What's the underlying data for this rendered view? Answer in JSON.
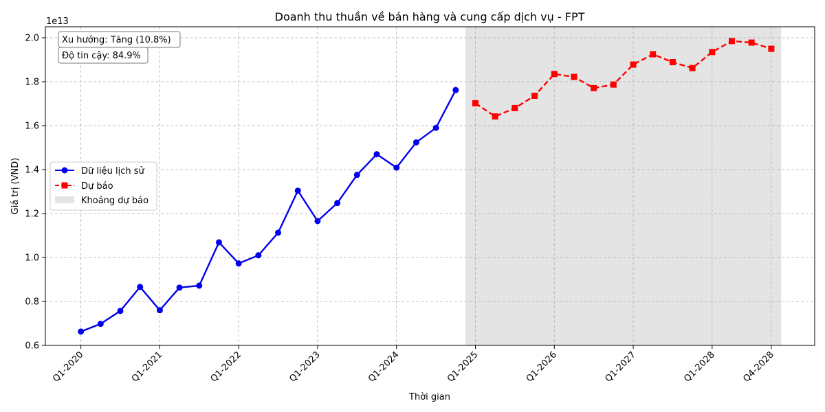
{
  "chart_data": {
    "type": "line",
    "title": "Doanh thu thuần về bán hàng và cung cấp dịch vụ - FPT",
    "xlabel": "Thời gian",
    "ylabel": "Giá trị (VND)",
    "y_scale_label": "1e13",
    "ylim": [
      0.6,
      2.05
    ],
    "y_ticks": [
      0.6,
      0.8,
      1.0,
      1.2,
      1.4,
      1.6,
      1.8,
      2.0
    ],
    "y_tick_labels": [
      "0.6",
      "0.8",
      "1.0",
      "1.2",
      "1.4",
      "1.6",
      "1.8",
      "2.0"
    ],
    "x_ticks": [
      {
        "label": "Q1-2020",
        "q": 0
      },
      {
        "label": "Q1-2021",
        "q": 4
      },
      {
        "label": "Q1-2022",
        "q": 8
      },
      {
        "label": "Q1-2023",
        "q": 12
      },
      {
        "label": "Q1-2024",
        "q": 16
      },
      {
        "label": "Q1-2025",
        "q": 20
      },
      {
        "label": "Q1-2026",
        "q": 24
      },
      {
        "label": "Q1-2027",
        "q": 28
      },
      {
        "label": "Q1-2028",
        "q": 32
      },
      {
        "label": "Q4-2028",
        "q": 35
      }
    ],
    "grid": true,
    "legend_placement": "center-left",
    "series": [
      {
        "name": "Dữ liệu lịch sử",
        "color": "#0000ee",
        "style": "solid",
        "marker": "circle",
        "x": [
          0,
          1,
          2,
          3,
          4,
          5,
          6,
          7,
          8,
          9,
          10,
          11,
          12,
          13,
          14,
          15,
          16,
          17,
          18,
          19
        ],
        "values": [
          0.663,
          0.698,
          0.757,
          0.866,
          0.76,
          0.863,
          0.872,
          1.069,
          0.973,
          1.01,
          1.113,
          1.304,
          1.166,
          1.248,
          1.376,
          1.47,
          1.409,
          1.524,
          1.59,
          1.762
        ]
      },
      {
        "name": "Dự báo",
        "color": "#ff0000",
        "style": "dashed",
        "marker": "square",
        "x": [
          20,
          21,
          22,
          23,
          24,
          25,
          26,
          27,
          28,
          29,
          30,
          31,
          32,
          33,
          34,
          35
        ],
        "values": [
          1.702,
          1.642,
          1.68,
          1.736,
          1.835,
          1.822,
          1.771,
          1.787,
          1.878,
          1.925,
          1.889,
          1.862,
          1.935,
          1.985,
          1.978,
          1.95
        ]
      }
    ],
    "forecast_band": {
      "name": "Khoảng dự báo",
      "color": "#d9d9d9",
      "x_start": 19.5,
      "x_end": 35.5
    },
    "annotations": [
      "Xu hướng: Tăng (10.8%)",
      "Độ tin cậy: 84.9%"
    ]
  }
}
